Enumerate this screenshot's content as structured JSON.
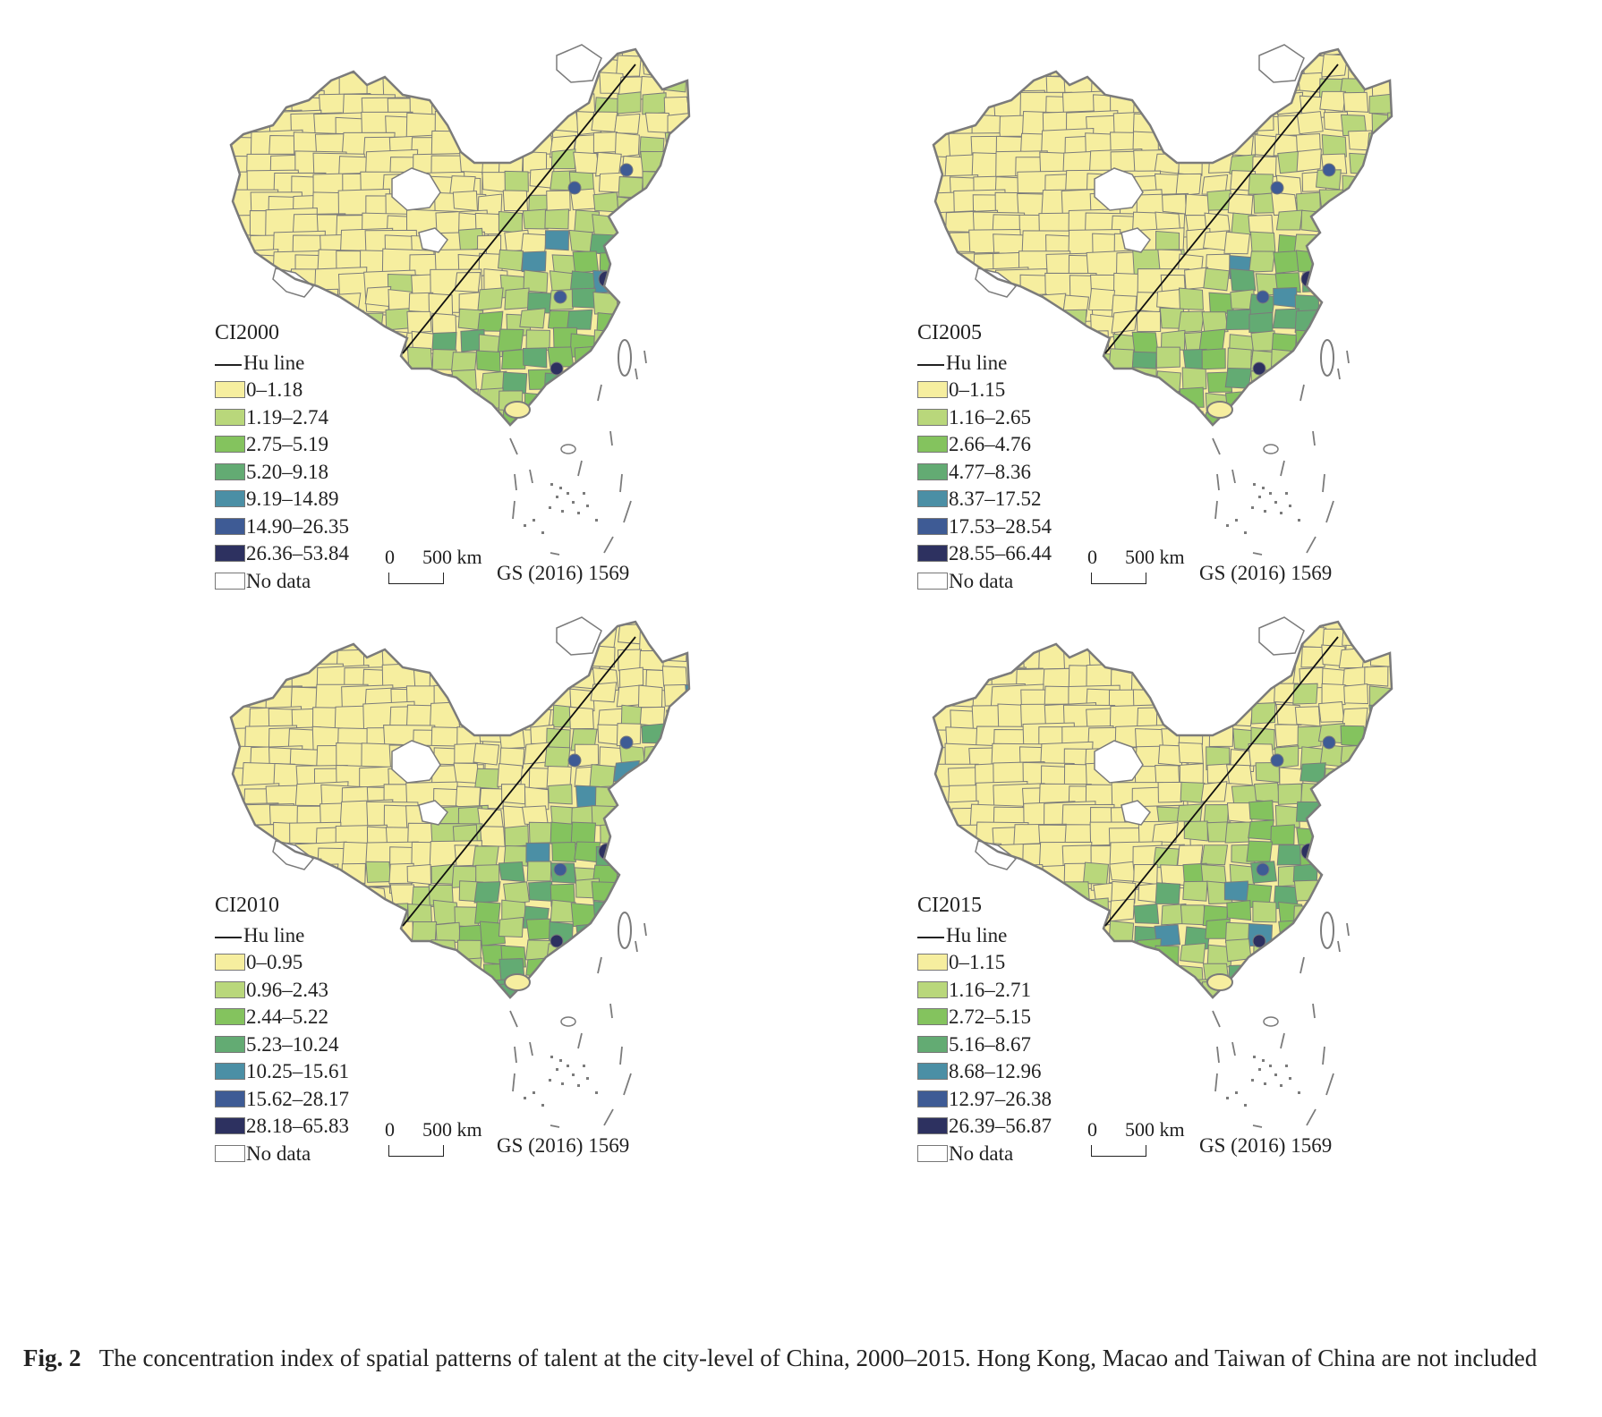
{
  "panels": [
    {
      "title": "CI2000",
      "hu_label": "Hu line",
      "classes": [
        "0–1.18",
        "1.19–2.74",
        "2.75–5.19",
        "5.20–9.18",
        "9.19–14.89",
        "14.90–26.35",
        "26.36–53.84"
      ],
      "no_data": "No data",
      "scale_zero": "0",
      "scale_km": "500 km",
      "map_number": "GS (2016) 1569"
    },
    {
      "title": "CI2005",
      "hu_label": "Hu line",
      "classes": [
        "0–1.15",
        "1.16–2.65",
        "2.66–4.76",
        "4.77–8.36",
        "8.37–17.52",
        "17.53–28.54",
        "28.55–66.44"
      ],
      "no_data": "No data",
      "scale_zero": "0",
      "scale_km": "500 km",
      "map_number": "GS (2016) 1569"
    },
    {
      "title": "CI2010",
      "hu_label": "Hu line",
      "classes": [
        "0–0.95",
        "0.96–2.43",
        "2.44–5.22",
        "5.23–10.24",
        "10.25–15.61",
        "15.62–28.17",
        "28.18–65.83"
      ],
      "no_data": "No data",
      "scale_zero": "0",
      "scale_km": "500 km",
      "map_number": "GS (2016) 1569"
    },
    {
      "title": "CI2015",
      "hu_label": "Hu line",
      "classes": [
        "0–1.15",
        "1.16–2.71",
        "2.72–5.15",
        "5.16–8.67",
        "8.68–12.96",
        "12.97–26.38",
        "26.39–56.87"
      ],
      "no_data": "No data",
      "scale_zero": "0",
      "scale_km": "500 km",
      "map_number": "GS (2016) 1569"
    }
  ],
  "class_colors": [
    "#f6ee9f",
    "#b9d77b",
    "#84c35e",
    "#63ab73",
    "#4b8fa5",
    "#3e5b95",
    "#2d3160"
  ],
  "no_data_color": "#ffffff",
  "boundary_color": "#7b7b7b",
  "caption": {
    "label": "Fig. 2",
    "text": "The concentration index of spatial patterns of talent at the city-level of China, 2000–2015. Hong Kong, Macao and Taiwan of China are not included"
  }
}
